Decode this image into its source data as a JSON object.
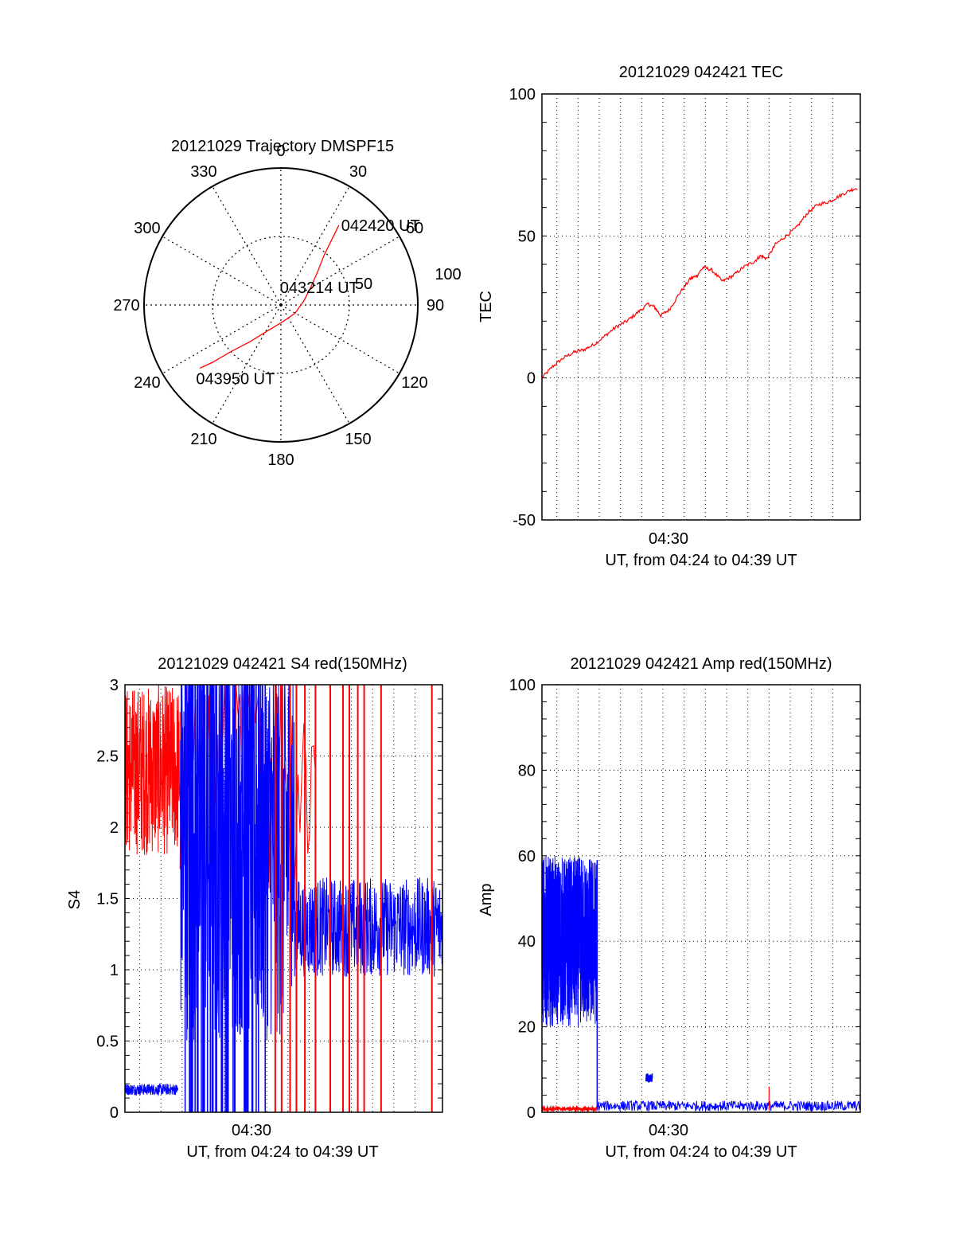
{
  "colors": {
    "red": "#ff0000",
    "blue": "#0000ff",
    "axis": "#000000",
    "grid": "#000000"
  },
  "chart_data": [
    {
      "id": "trajectory",
      "type": "polar",
      "title": "20121029 Trajectory DMSPF15",
      "angle_labels": [
        "0",
        "30",
        "60",
        "90",
        "120",
        "150",
        "180",
        "210",
        "240",
        "270",
        "300",
        "330"
      ],
      "radial_labels": [
        "50",
        "100"
      ],
      "rlim": [
        0,
        100
      ],
      "grid": true,
      "series": [
        {
          "color": "red",
          "points": [
            {
              "az": 36,
              "r": 72
            },
            {
              "az": 38,
              "r": 60
            },
            {
              "az": 41,
              "r": 48
            },
            {
              "az": 48,
              "r": 36
            },
            {
              "az": 60,
              "r": 25
            },
            {
              "az": 80,
              "r": 17
            },
            {
              "az": 120,
              "r": 12
            },
            {
              "az": 170,
              "r": 12
            },
            {
              "az": 205,
              "r": 20
            },
            {
              "az": 220,
              "r": 35
            },
            {
              "az": 227,
              "r": 50
            },
            {
              "az": 230,
              "r": 65
            },
            {
              "az": 232,
              "r": 75
            }
          ]
        }
      ],
      "annotations": [
        {
          "text": "042420 UT",
          "az": 36,
          "r": 72
        },
        {
          "text": "043214 UT",
          "az": 80,
          "r": 17
        },
        {
          "text": "043950 UT",
          "az": 232,
          "r": 75
        }
      ]
    },
    {
      "id": "tec",
      "type": "line",
      "title": "20121029 042421 TEC",
      "ylabel": "TEC",
      "xlabel": "UT, from 04:24 to 04:39 UT",
      "xtick_label": "04:30",
      "ylim": [
        -50,
        100
      ],
      "yticks": [
        "-50",
        "0",
        "50",
        "100"
      ],
      "grid": true,
      "series": [
        {
          "color": "red",
          "x_minutes": [
            0.0,
            0.5,
            1.0,
            1.5,
            2.0,
            2.5,
            3.0,
            3.5,
            4.0,
            4.5,
            5.0,
            5.3,
            5.6,
            6.0,
            6.5,
            7.0,
            7.3,
            7.6,
            8.0,
            8.5,
            9.0,
            9.5,
            10.0,
            10.3,
            10.6,
            11.0,
            11.5,
            12.0,
            12.5,
            13.0,
            13.5,
            14.0,
            14.5,
            14.9
          ],
          "values": [
            0,
            4,
            7,
            9,
            10,
            12,
            15,
            18,
            20,
            23,
            26,
            25,
            22,
            24,
            30,
            35,
            36,
            39,
            38,
            34,
            36,
            39,
            41,
            43,
            42,
            47,
            50,
            53,
            58,
            61,
            62,
            64,
            66,
            67
          ]
        }
      ]
    },
    {
      "id": "s4",
      "type": "line",
      "title": "20121029 042421 S4 red(150MHz)",
      "ylabel": "S4",
      "xlabel": "UT, from 04:24 to 04:39 UT",
      "xtick_label": "04:30",
      "ylim": [
        0,
        3
      ],
      "yticks": [
        "0",
        "0.5",
        "1",
        "1.5",
        "2",
        "2.5",
        "3"
      ],
      "grid": true,
      "series": [
        {
          "color": "red",
          "segments": [
            {
              "x": [
                0.0,
                2.6
              ],
              "mean": 2.4,
              "spread": 0.6,
              "clip": 3
            },
            {
              "x": [
                2.6,
                9.0
              ],
              "mean": 2.4,
              "spread": 0.9,
              "clip": 3,
              "sparse": true
            }
          ],
          "spikes_x": [
            7.1,
            7.4,
            7.8,
            8.1,
            8.5,
            9.0,
            9.7,
            10.3,
            10.6,
            11.0,
            11.3,
            12.1,
            14.5
          ]
        },
        {
          "color": "blue",
          "segments": [
            {
              "x": [
                0.0,
                2.5
              ],
              "mean": 0.16,
              "spread": 0.04
            },
            {
              "x": [
                2.6,
                8.0
              ],
              "mean": 1.9,
              "spread": 1.4,
              "clip": 3
            },
            {
              "x": [
                8.0,
                15.0
              ],
              "mean": 1.3,
              "spread": 0.35
            }
          ]
        }
      ]
    },
    {
      "id": "amp",
      "type": "line",
      "title": "20121029 042421 Amp red(150MHz)",
      "ylabel": "Amp",
      "xlabel": "UT, from 04:24 to 04:39 UT",
      "xtick_label": "04:30",
      "ylim": [
        0,
        100
      ],
      "yticks": [
        "0",
        "20",
        "40",
        "60",
        "80",
        "100"
      ],
      "grid": true,
      "series": [
        {
          "color": "blue",
          "segments": [
            {
              "x": [
                0.0,
                2.6
              ],
              "mean": 40,
              "spread": 20
            },
            {
              "x": [
                2.6,
                15.0
              ],
              "mean": 1.5,
              "spread": 1.2
            }
          ],
          "bursts": [
            {
              "x": [
                4.9,
                5.2
              ],
              "value": 10
            }
          ]
        },
        {
          "color": "red",
          "segments": [
            {
              "x": [
                0.0,
                2.6
              ],
              "mean": 0.8,
              "spread": 0.3
            }
          ],
          "spikes": [
            {
              "x": 10.7,
              "value": 6
            }
          ]
        }
      ]
    }
  ]
}
